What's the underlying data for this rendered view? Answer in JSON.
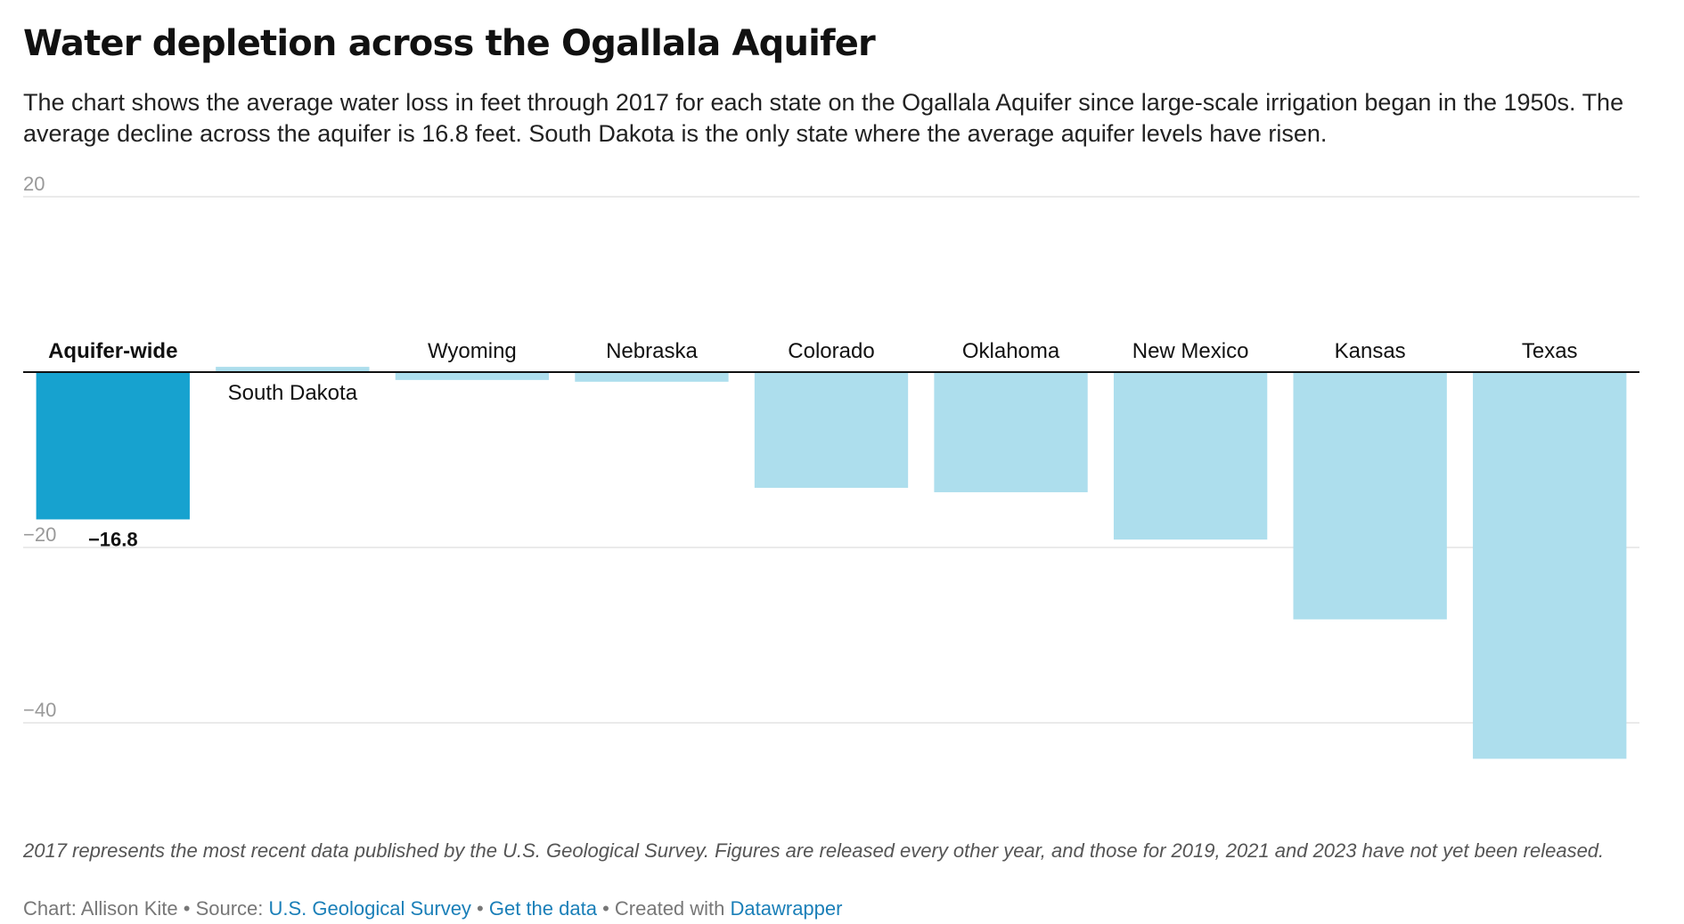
{
  "header": {
    "title": "Water depletion across the Ogallala Aquifer",
    "subtitle": "The chart shows the average water loss in feet through 2017 for each state on the Ogallala Aquifer since large-scale irrigation began in the 1950s. The average decline across the aquifer is 16.8 feet. South Dakota is the only state where the average aquifer levels have risen."
  },
  "chart_data": {
    "type": "bar",
    "title": "Water depletion across the Ogallala Aquifer",
    "xlabel": "",
    "ylabel": "",
    "ylim": [
      -50,
      20
    ],
    "yticks": [
      20,
      -20,
      -40
    ],
    "ytick_labels": [
      "20",
      "−20",
      "−40"
    ],
    "grid": true,
    "categories": [
      "Aquifer-wide",
      "South Dakota",
      "Wyoming",
      "Nebraska",
      "Colorado",
      "Oklahoma",
      "New Mexico",
      "Kansas",
      "Texas"
    ],
    "values": [
      -16.8,
      0.6,
      -0.9,
      -1.1,
      -13.2,
      -13.7,
      -19.1,
      -28.2,
      -44.1
    ],
    "highlight": "Aquifer-wide",
    "value_labels": {
      "Aquifer-wide": "−16.8"
    },
    "colors": {
      "highlight": "#17a2cf",
      "default": "#addeed",
      "axis": "#111111",
      "grid": "#e3e3e3",
      "tick_text": "#999999"
    }
  },
  "footer": {
    "notes": "2017 represents the most recent data published by the U.S. Geological Survey. Figures are released every other year, and those for 2019, 2021 and 2023 have not yet been released.",
    "credit_prefix": "Chart: Allison Kite • Source: ",
    "source_link": "U.S. Geological Survey",
    "separator_1": " • ",
    "data_link": "Get the data",
    "separator_2": " • Created with ",
    "tool_link": "Datawrapper"
  }
}
